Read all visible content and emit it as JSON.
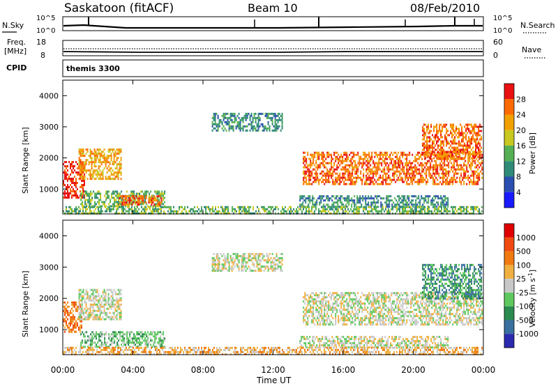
{
  "header": {
    "station": "Saskatoon (fitACF)",
    "beam": "Beam 10",
    "date": "08/Feb/2010"
  },
  "nsky_panel": {
    "left_label": "N.Sky",
    "left_ticks": [
      "10^5",
      "10^0"
    ],
    "right_ticks": [
      "10^5",
      "10^0"
    ],
    "right_label": "N.Search"
  },
  "freq_panel": {
    "left_label_1": "Freq.",
    "left_label_2": "[MHz]",
    "left_ticks": [
      "18",
      "8"
    ],
    "right_ticks": [
      "60",
      "0"
    ],
    "right_label": "Nave"
  },
  "cpid_panel": {
    "label": "CPID",
    "value": "themis 3300"
  },
  "chart_data": [
    {
      "type": "heatmap",
      "name": "power",
      "ylabel": "Slant Range [km]",
      "ylim": [
        200,
        4500
      ],
      "yticks": [
        1000,
        2000,
        3000,
        4000
      ],
      "xlim": [
        0,
        24
      ],
      "colorbar": {
        "label": "Power [dB]",
        "ticks": [
          "4",
          "8",
          "12",
          "16",
          "20",
          "24",
          "28"
        ],
        "colors": [
          "#1a1aff",
          "#2a4fb0",
          "#2f8a78",
          "#55b055",
          "#c8c820",
          "#f0a000",
          "#ff6a00",
          "#e81010"
        ]
      },
      "regions": [
        {
          "t0": 0.0,
          "t1": 1.2,
          "r0": 700,
          "r1": 1900,
          "level": 7
        },
        {
          "t0": 0.9,
          "t1": 3.3,
          "r0": 1300,
          "r1": 2300,
          "level": 5
        },
        {
          "t0": 1.0,
          "t1": 5.8,
          "r0": 450,
          "r1": 950,
          "level": 3
        },
        {
          "t0": 3.2,
          "t1": 5.6,
          "r0": 500,
          "r1": 800,
          "level": 6
        },
        {
          "t0": 8.5,
          "t1": 12.5,
          "r0": 2900,
          "r1": 3450,
          "level": 2
        },
        {
          "t0": 13.7,
          "t1": 23.9,
          "r0": 1150,
          "r1": 2200,
          "level": 6
        },
        {
          "t0": 20.5,
          "t1": 23.9,
          "r0": 2000,
          "r1": 3100,
          "level": 6
        },
        {
          "t0": 13.5,
          "t1": 22.0,
          "r0": 400,
          "r1": 800,
          "level": 2
        },
        {
          "t0": 0.0,
          "t1": 23.9,
          "r0": 200,
          "r1": 450,
          "level": 3
        }
      ]
    },
    {
      "type": "heatmap",
      "name": "velocity",
      "ylabel": "Slant Range [km]",
      "ylim": [
        200,
        4500
      ],
      "yticks": [
        1000,
        2000,
        3000,
        4000
      ],
      "xlim": [
        0,
        24
      ],
      "xticks": [
        "00:00",
        "04:00",
        "08:00",
        "12:00",
        "16:00",
        "20:00",
        "00:00"
      ],
      "xlabel": "Time UT",
      "colorbar": {
        "label": "Velocity [m s-1]",
        "label_main": "Velocity",
        "label_unit": "[m s",
        "label_sup": "-1",
        "label_close": "]",
        "ticks": [
          "1000",
          "500",
          "100",
          "25",
          "-25",
          "-100",
          "-500",
          "-1000"
        ],
        "colors": [
          "#2a2ab0",
          "#3a70a0",
          "#2a8a50",
          "#5ec85e",
          "#c8c8c8",
          "#f0b040",
          "#f07a10",
          "#f04a10",
          "#e00000"
        ]
      },
      "regions": [
        {
          "t0": 0.0,
          "t1": 1.1,
          "r0": 900,
          "r1": 1900,
          "level": 6
        },
        {
          "t0": 0.9,
          "t1": 3.3,
          "r0": 1300,
          "r1": 2300,
          "level": 4
        },
        {
          "t0": 1.0,
          "t1": 5.8,
          "r0": 450,
          "r1": 950,
          "level": 3
        },
        {
          "t0": 8.5,
          "t1": 12.5,
          "r0": 2900,
          "r1": 3450,
          "level": 4
        },
        {
          "t0": 13.7,
          "t1": 23.9,
          "r0": 1150,
          "r1": 2200,
          "level": 4
        },
        {
          "t0": 20.5,
          "t1": 23.9,
          "r0": 2000,
          "r1": 3100,
          "level": 2
        },
        {
          "t0": 13.5,
          "t1": 22.0,
          "r0": 400,
          "r1": 800,
          "level": 4
        },
        {
          "t0": 0.0,
          "t1": 23.9,
          "r0": 200,
          "r1": 450,
          "level": 5
        }
      ]
    }
  ]
}
